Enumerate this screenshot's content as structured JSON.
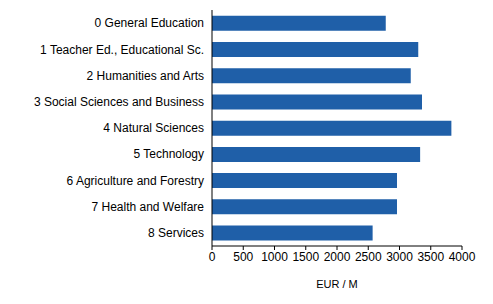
{
  "chart_data": {
    "type": "bar",
    "orientation": "horizontal",
    "x_label": "EUR / M",
    "categories": [
      "0  General Education",
      "1  Teacher Ed., Educational Sc.",
      "2  Humanities and Arts",
      "3  Social Sciences and Business",
      "4  Natural Sciences",
      "5  Technology",
      "6  Agriculture and Forestry",
      "7  Health and Welfare",
      "8  Services"
    ],
    "values": [
      2780,
      3300,
      3180,
      3360,
      3830,
      3330,
      2960,
      2960,
      2570
    ],
    "color": "#1f5fa8",
    "xlim": [
      0,
      4000
    ],
    "xticks": [
      0,
      500,
      1000,
      1500,
      2000,
      2500,
      3000,
      3500,
      4000
    ],
    "grid": false
  }
}
